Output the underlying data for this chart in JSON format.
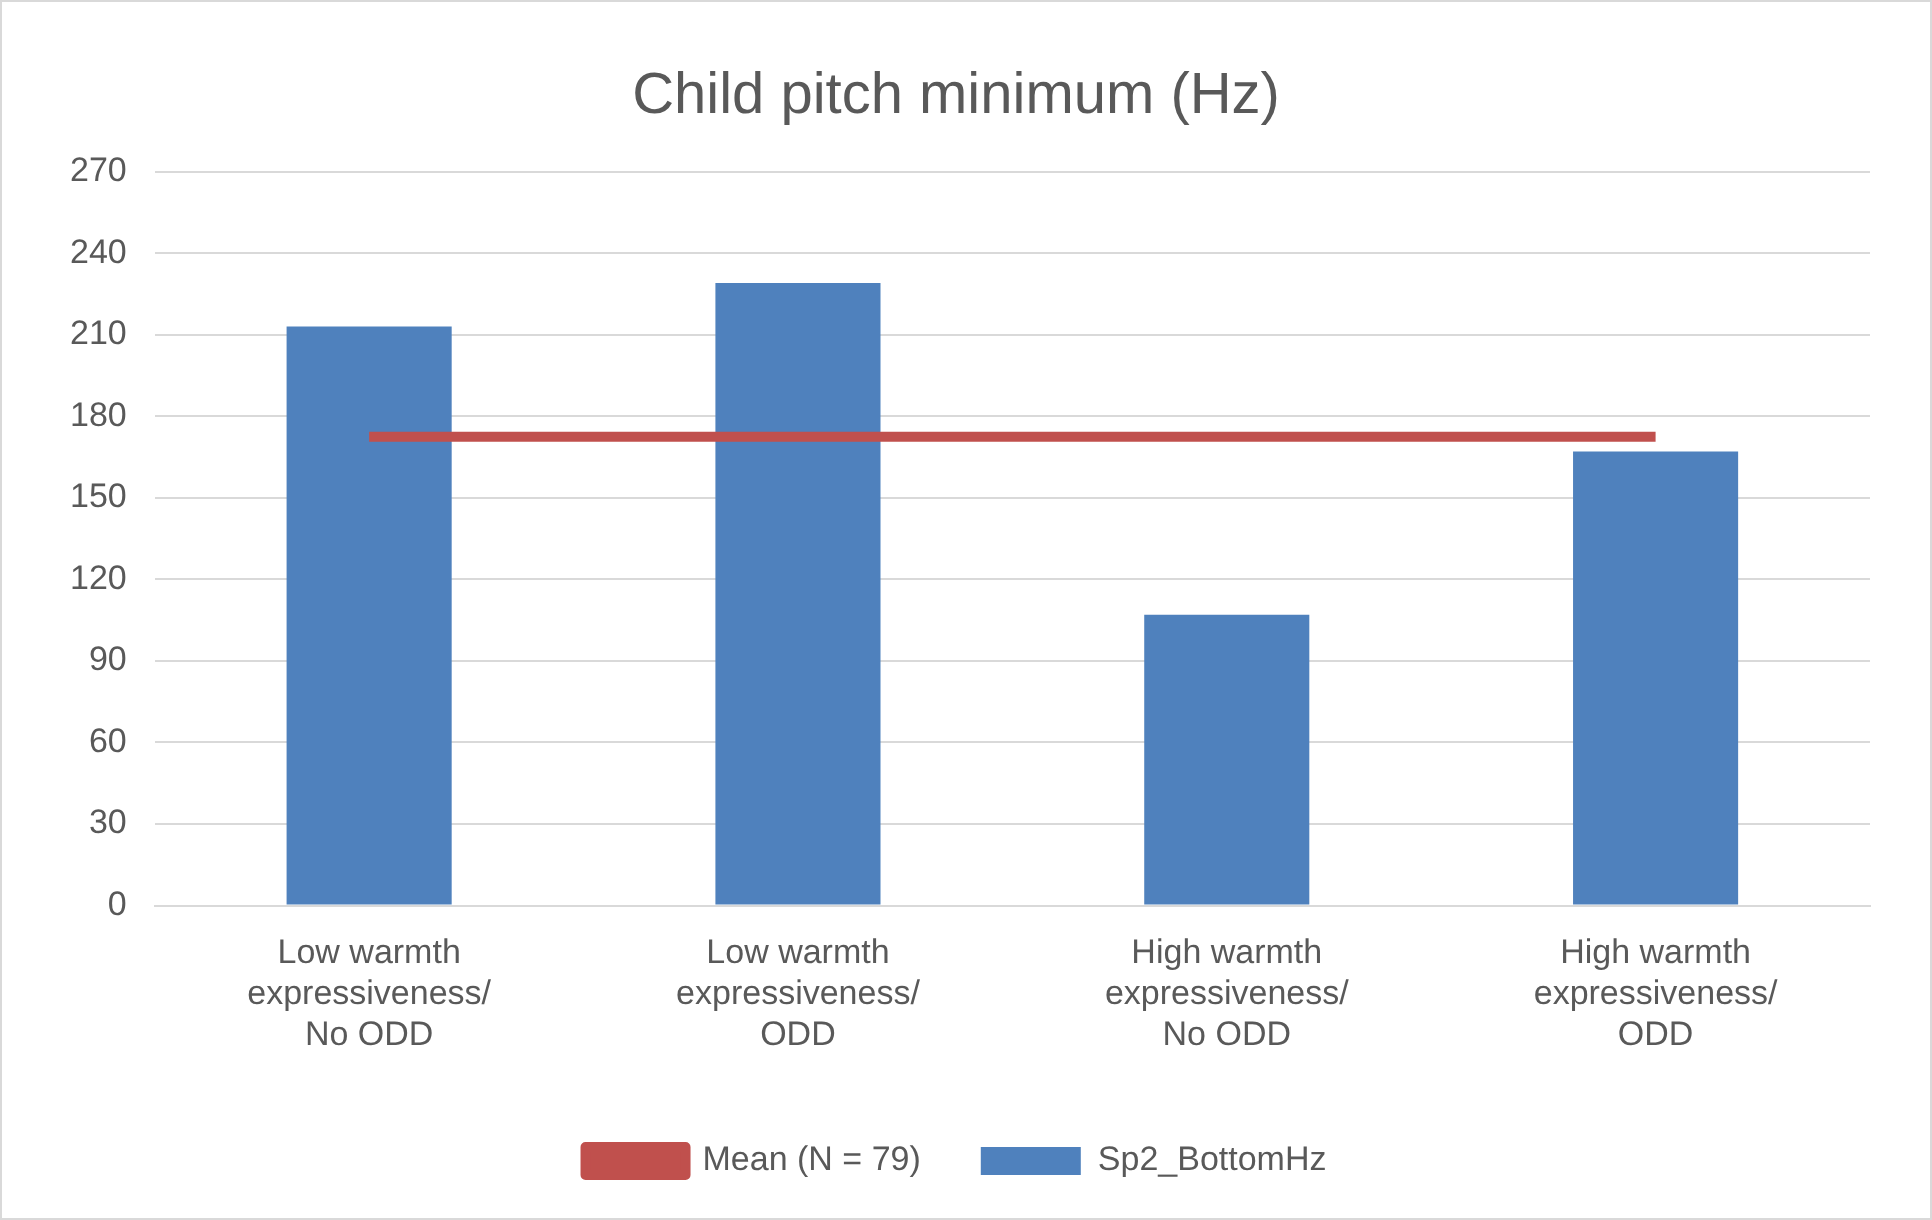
{
  "chart_data": {
    "type": "bar",
    "title": "Child pitch minimum (Hz)",
    "categories": [
      "Low warmth expressiveness/ No ODD",
      "Low warmth expressiveness/ ODD",
      "High warmth expressiveness/ No ODD",
      "High warmth expressiveness/ ODD"
    ],
    "series": [
      {
        "name": "Sp2_BottomHz",
        "color": "#4f81bd",
        "values": [
          213,
          229,
          107,
          167
        ]
      },
      {
        "name": "Mean (N = 79)",
        "type": "line",
        "color": "#c0504d",
        "values": [
          172.5,
          172.5,
          172.5,
          172.5
        ]
      }
    ],
    "ylim": [
      0,
      270
    ],
    "yticks": [
      0,
      30,
      60,
      90,
      120,
      150,
      180,
      210,
      240,
      270
    ],
    "grid": "y",
    "legend": "bottom",
    "marker": "none"
  }
}
